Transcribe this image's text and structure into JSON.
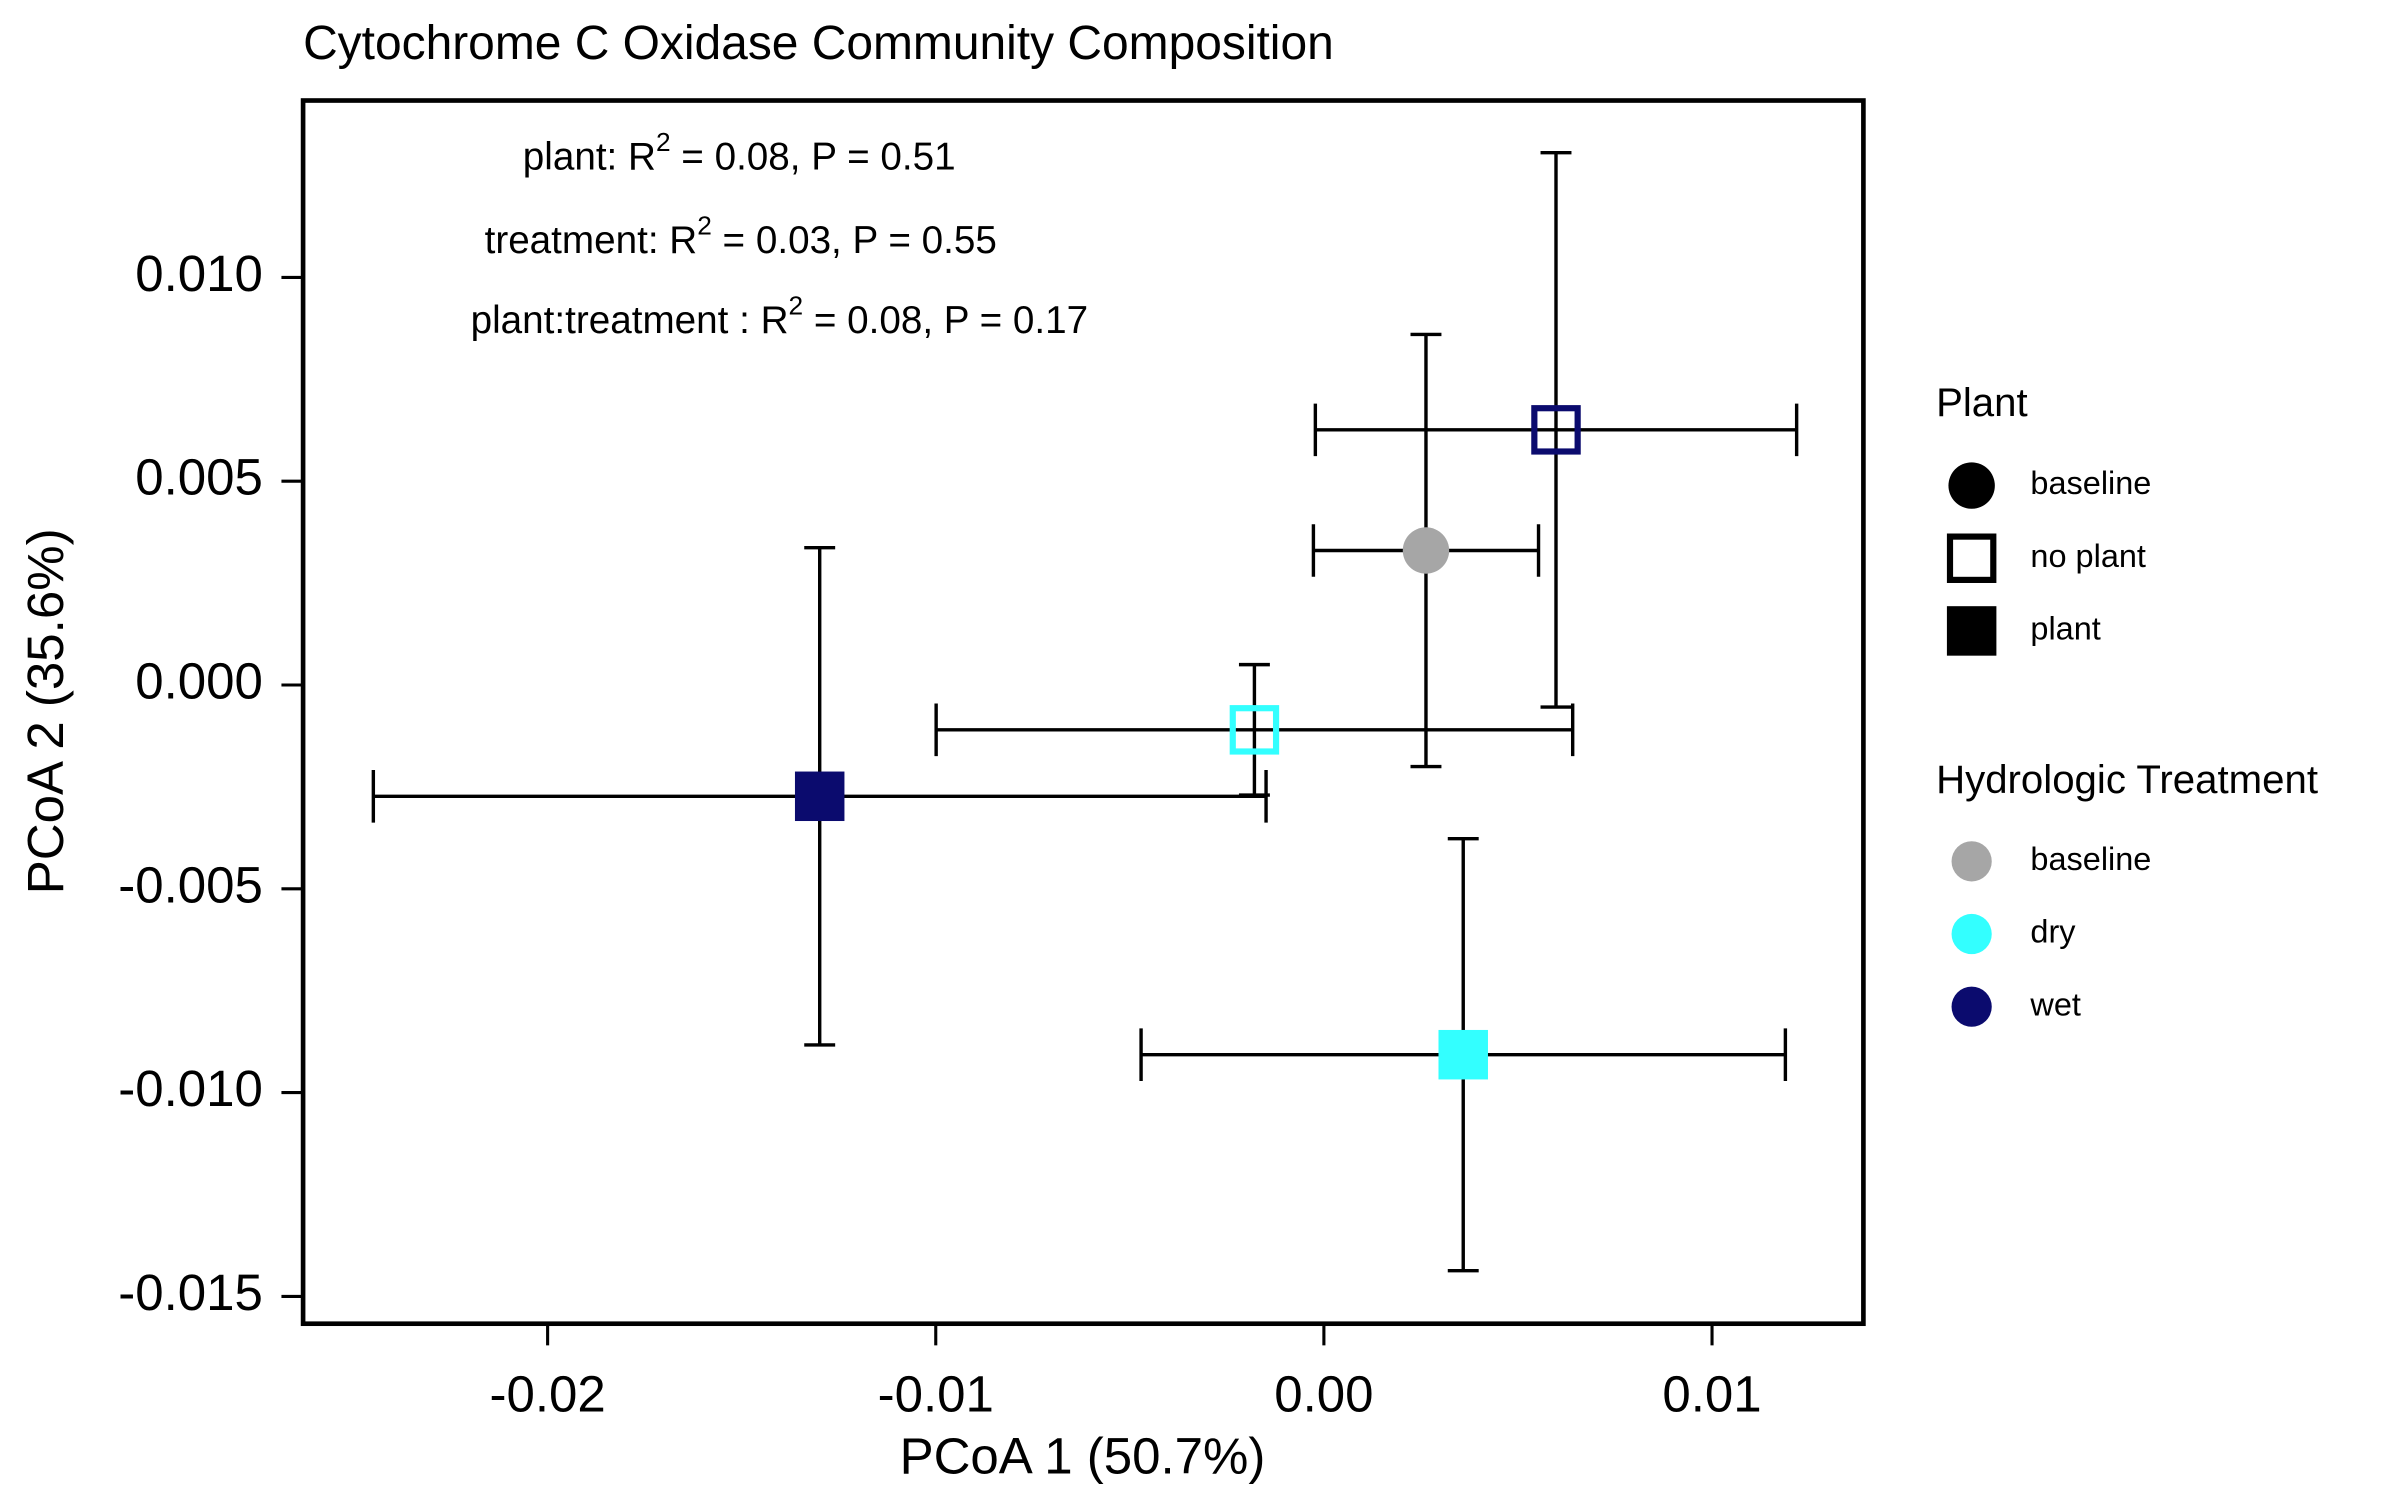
{
  "chart_data": {
    "type": "scatter",
    "title": "Cytochrome C Oxidase Community Composition",
    "x_label": "PCoA 1 (50.7%)",
    "y_label": "PCoA 2 (35.6%)",
    "xlim": [
      -0.0263,
      0.0139
    ],
    "ylim": [
      -0.01567,
      0.01434
    ],
    "xticks": [
      {
        "value": -0.02,
        "label": "-0.02"
      },
      {
        "value": -0.01,
        "label": "-0.01"
      },
      {
        "value": 0,
        "label": "0.00"
      },
      {
        "value": 0.01,
        "label": "0.01"
      }
    ],
    "yticks": [
      {
        "value": 0.01,
        "label": "0.010"
      },
      {
        "value": 0.005,
        "label": "0.005"
      },
      {
        "value": 0,
        "label": "0.000"
      },
      {
        "value": -0.005,
        "label": "-0.005"
      },
      {
        "value": -0.01,
        "label": "-0.010"
      },
      {
        "value": -0.015,
        "label": "-0.015"
      }
    ],
    "annotations": [
      {
        "before": "plant: R",
        "sup": "2",
        "after": " = 0.08, P = 0.51"
      },
      {
        "before": "treatment: R",
        "sup": "2",
        "after": " = 0.03, P = 0.55"
      },
      {
        "before": "plant:treatment : R",
        "sup": "2",
        "after": " = 0.08, P = 0.17"
      }
    ],
    "points": [
      {
        "plant": "baseline",
        "treatment": "baseline",
        "x": 0.00263,
        "y": 0.0033,
        "xerr": 0.0029,
        "yerr": 0.0053
      },
      {
        "plant": "no plant",
        "treatment": "wet",
        "x": 0.00598,
        "y": 0.00626,
        "xerr": 0.0062,
        "yerr": 0.0068
      },
      {
        "plant": "no plant",
        "treatment": "dry",
        "x": -0.00179,
        "y": -0.0011,
        "xerr": 0.0082,
        "yerr": 0.0016
      },
      {
        "plant": "plant",
        "treatment": "wet",
        "x": -0.01299,
        "y": -0.00273,
        "xerr": 0.0115,
        "yerr": 0.0061
      },
      {
        "plant": "plant",
        "treatment": "dry",
        "x": 0.00359,
        "y": -0.00907,
        "xerr": 0.0083,
        "yerr": 0.0053
      }
    ],
    "plant_legend": {
      "title": "Plant",
      "entries": [
        {
          "label": "baseline",
          "shape": "circle"
        },
        {
          "label": "no plant",
          "shape": "open-square"
        },
        {
          "label": "plant",
          "shape": "square"
        }
      ]
    },
    "treatment_legend": {
      "title": "Hydrologic Treatment",
      "entries": [
        {
          "label": "baseline",
          "color": "#a6a6a6"
        },
        {
          "label": "dry",
          "color": "#33ffff"
        },
        {
          "label": "wet",
          "color": "#0b0b6e"
        }
      ]
    }
  }
}
